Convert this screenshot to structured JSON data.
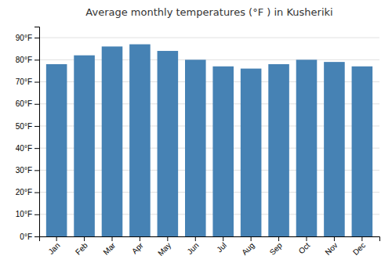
{
  "chart_data": {
    "type": "bar",
    "title": "Average monthly temperatures (°F ) in Kusheriki",
    "categories": [
      "Jan",
      "Feb",
      "Mar",
      "Apr",
      "May",
      "Jun",
      "Jul",
      "Aug",
      "Sep",
      "Oct",
      "Nov",
      "Dec"
    ],
    "values": [
      78,
      82,
      86,
      87,
      84,
      80,
      77,
      76,
      78,
      80,
      79,
      77
    ],
    "ylim": [
      0,
      95
    ],
    "yticks": [
      {
        "value": 0,
        "label": "0°F"
      },
      {
        "value": 10,
        "label": "10°F"
      },
      {
        "value": 20,
        "label": "20°F"
      },
      {
        "value": 30,
        "label": "30°F"
      },
      {
        "value": 40,
        "label": "40°F"
      },
      {
        "value": 50,
        "label": "50°F"
      },
      {
        "value": 60,
        "label": "60°F"
      },
      {
        "value": 70,
        "label": "70°F"
      },
      {
        "value": 80,
        "label": "80°F"
      },
      {
        "value": 90,
        "label": "90°F"
      }
    ],
    "grid": true
  }
}
